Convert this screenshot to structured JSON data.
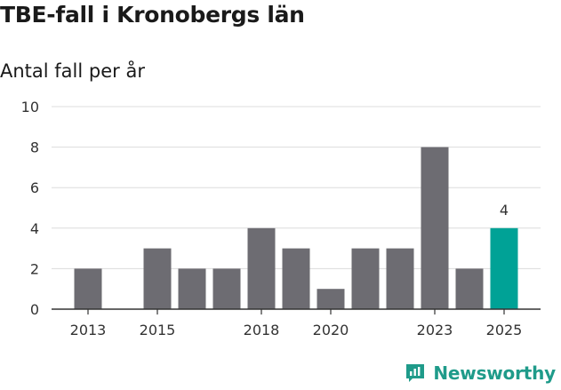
{
  "title": "TBE-fall i Kronobergs län",
  "subtitle": "Antal fall per år",
  "brand": {
    "name": "Newsworthy",
    "icon": "newsworthy-logo-icon",
    "color": "#1f9b8a"
  },
  "colors": {
    "bar": "#6d6c72",
    "highlight": "#00a296",
    "grid": "#dcdcdc",
    "axis": "#333333"
  },
  "chart_data": {
    "type": "bar",
    "title": "TBE-fall i Kronobergs län",
    "ylabel": "Antal fall per år",
    "xlabel": "",
    "categories": [
      "2013",
      "2014",
      "2015",
      "2016",
      "2017",
      "2018",
      "2019",
      "2020",
      "2021",
      "2022",
      "2023",
      "2024",
      "2025"
    ],
    "values": [
      2,
      0,
      3,
      2,
      2,
      4,
      3,
      1,
      3,
      3,
      8,
      2,
      4
    ],
    "highlight_index": 12,
    "data_labels": [
      {
        "index": 12,
        "text": "4"
      }
    ],
    "xtick_labels": [
      "2013",
      "2015",
      "2018",
      "2020",
      "2023",
      "2025"
    ],
    "yticks": [
      0,
      2,
      4,
      6,
      8,
      10
    ],
    "ylim": [
      0,
      10
    ],
    "grid": true
  }
}
